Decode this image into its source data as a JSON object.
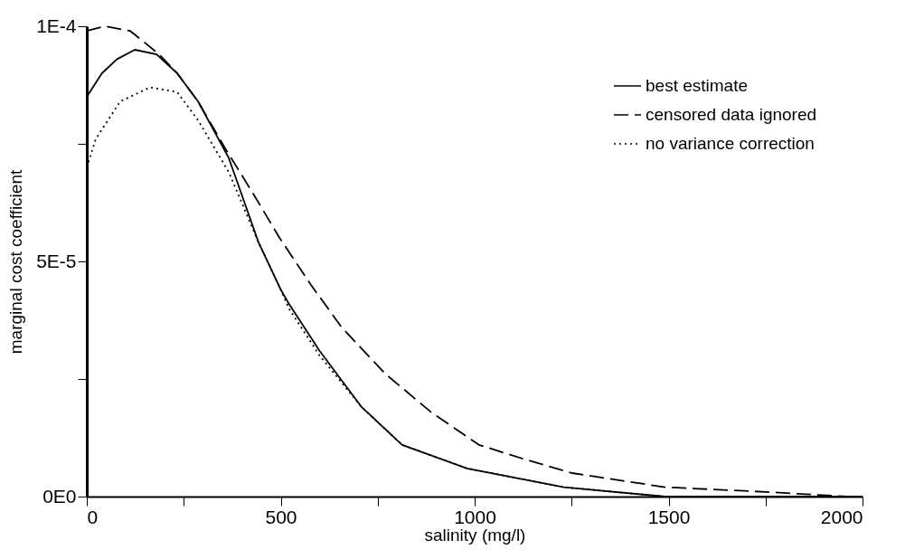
{
  "chart_data": {
    "type": "line",
    "xlabel": "salinity (mg/l)",
    "ylabel": "marginal cost coefficient",
    "xlim": [
      0,
      2000
    ],
    "ylim": [
      0,
      0.0001
    ],
    "xticks": [
      0,
      {
        "value": 250,
        "label": null
      },
      500,
      {
        "value": 750,
        "label": null
      },
      1000,
      {
        "value": 1250,
        "label": null
      },
      1500,
      {
        "value": 1750,
        "label": null
      },
      2000
    ],
    "yticks": [
      {
        "value": 0,
        "label": "0E0"
      },
      {
        "value": 2.5e-05,
        "label": null
      },
      {
        "value": 5e-05,
        "label": "5E-5"
      },
      {
        "value": 7.5e-05,
        "label": null
      },
      {
        "value": 0.0001,
        "label": "1E-4"
      }
    ],
    "grid": false,
    "legend": "top right",
    "series": [
      {
        "name": "best estimate",
        "color": "#000000",
        "line_style": "solid",
        "x": [
          0,
          39,
          78,
          124,
          180,
          233,
          287,
          366,
          443,
          500,
          521,
          600,
          709,
          813,
          980,
          1230,
          1491,
          1750,
          2000
        ],
        "values": [
          8.5e-05,
          9e-05,
          9.3e-05,
          9.5e-05,
          9.4e-05,
          9e-05,
          8.4e-05,
          7.2e-05,
          5.4e-05,
          4.4e-05,
          4.1e-05,
          3.1e-05,
          1.9e-05,
          1.1e-05,
          6e-06,
          2e-06,
          0.0,
          0.0,
          0.0
        ]
      },
      {
        "name": "censored data ignored",
        "color": "#000000",
        "line_style": "dashed",
        "x": [
          0,
          47,
          112,
          187,
          233,
          287,
          357,
          432,
          497,
          578,
          657,
          771,
          887,
          1011,
          1126,
          1251,
          1491,
          1750,
          1960,
          2000
        ],
        "values": [
          9.9e-05,
          0.0001,
          9.9e-05,
          9.4e-05,
          9e-05,
          8.4e-05,
          7.4e-05,
          6.4e-05,
          5.5e-05,
          4.5e-05,
          3.6e-05,
          2.6e-05,
          1.8e-05,
          1.1e-05,
          8e-06,
          5e-06,
          2e-06,
          1e-06,
          0.0,
          0.0
        ]
      },
      {
        "name": "no variance correction",
        "color": "#000000",
        "line_style": "dotted",
        "x": [
          0,
          23,
          86,
          163,
          233,
          287,
          366,
          443,
          500,
          521,
          600,
          709,
          813,
          980,
          1230,
          1491,
          1750,
          2000
        ],
        "values": [
          7e-05,
          7.6e-05,
          8.4e-05,
          8.7e-05,
          8.6e-05,
          8e-05,
          6.9e-05,
          5.4e-05,
          4.4e-05,
          4e-05,
          3e-05,
          1.9e-05,
          1.1e-05,
          6e-06,
          2e-06,
          0.0,
          0.0,
          0.0
        ]
      }
    ]
  }
}
